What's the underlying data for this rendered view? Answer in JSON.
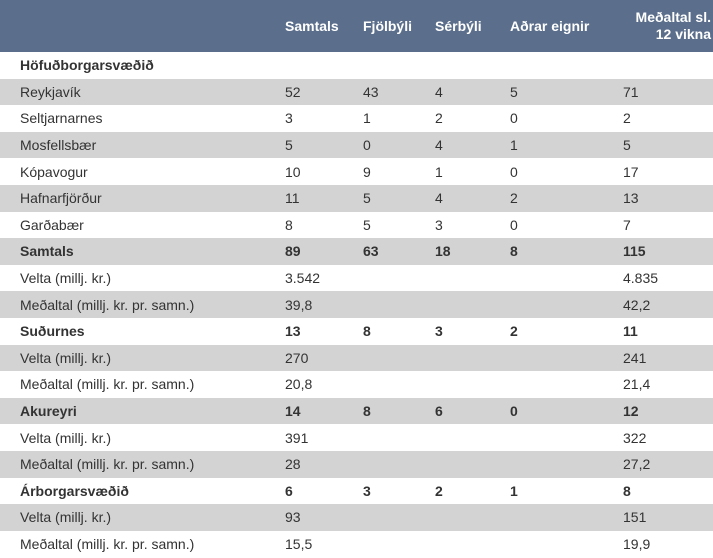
{
  "columns": [
    "",
    "Samtals",
    "Fjölbýli",
    "Sérbýli",
    "Aðrar eignir",
    "Meðaltal sl.\n12 vikna"
  ],
  "rows": [
    {
      "label": "Höfuðborgarsvæðið",
      "cells": [
        "",
        "",
        "",
        "",
        ""
      ],
      "bold": true,
      "shade": false
    },
    {
      "label": "Reykjavík",
      "cells": [
        "52",
        "43",
        "4",
        "5",
        "71"
      ],
      "bold": false,
      "shade": true
    },
    {
      "label": "Seltjarnarnes",
      "cells": [
        "3",
        "1",
        "2",
        "0",
        "2"
      ],
      "bold": false,
      "shade": false
    },
    {
      "label": "Mosfellsbær",
      "cells": [
        "5",
        "0",
        "4",
        "1",
        "5"
      ],
      "bold": false,
      "shade": true
    },
    {
      "label": "Kópavogur",
      "cells": [
        "10",
        "9",
        "1",
        "0",
        "17"
      ],
      "bold": false,
      "shade": false
    },
    {
      "label": "Hafnarfjörður",
      "cells": [
        "11",
        "5",
        "4",
        "2",
        "13"
      ],
      "bold": false,
      "shade": true
    },
    {
      "label": "Garðabær",
      "cells": [
        "8",
        "5",
        "3",
        "0",
        "7"
      ],
      "bold": false,
      "shade": false
    },
    {
      "label": "Samtals",
      "cells": [
        "89",
        "63",
        "18",
        "8",
        "115"
      ],
      "bold": true,
      "shade": true
    },
    {
      "label": "Velta (millj. kr.)",
      "cells": [
        "3.542",
        "",
        "",
        "",
        "4.835"
      ],
      "bold": false,
      "shade": false
    },
    {
      "label": "Meðaltal (millj. kr. pr. samn.)",
      "cells": [
        "39,8",
        "",
        "",
        "",
        "42,2"
      ],
      "bold": false,
      "shade": true
    },
    {
      "label": "Suðurnes",
      "cells": [
        "13",
        "8",
        "3",
        "2",
        "11"
      ],
      "bold": true,
      "shade": false
    },
    {
      "label": "Velta (millj. kr.)",
      "cells": [
        "270",
        "",
        "",
        "",
        "241"
      ],
      "bold": false,
      "shade": true
    },
    {
      "label": "Meðaltal (millj. kr. pr. samn.)",
      "cells": [
        "20,8",
        "",
        "",
        "",
        "21,4"
      ],
      "bold": false,
      "shade": false
    },
    {
      "label": "Akureyri",
      "cells": [
        "14",
        "8",
        "6",
        "0",
        "12"
      ],
      "bold": true,
      "shade": true
    },
    {
      "label": "Velta (millj. kr.)",
      "cells": [
        "391",
        "",
        "",
        "",
        "322"
      ],
      "bold": false,
      "shade": false
    },
    {
      "label": "Meðaltal (millj. kr. pr. samn.)",
      "cells": [
        "28",
        "",
        "",
        "",
        "27,2"
      ],
      "bold": false,
      "shade": true
    },
    {
      "label": "Árborgarsvæðið",
      "cells": [
        "6",
        "3",
        "2",
        "1",
        "8"
      ],
      "bold": true,
      "shade": false
    },
    {
      "label": "Velta (millj. kr.)",
      "cells": [
        "93",
        "",
        "",
        "",
        "151"
      ],
      "bold": false,
      "shade": true
    },
    {
      "label": "Meðaltal (millj. kr. pr. samn.)",
      "cells": [
        "15,5",
        "",
        "",
        "",
        "19,9"
      ],
      "bold": false,
      "shade": false
    }
  ]
}
